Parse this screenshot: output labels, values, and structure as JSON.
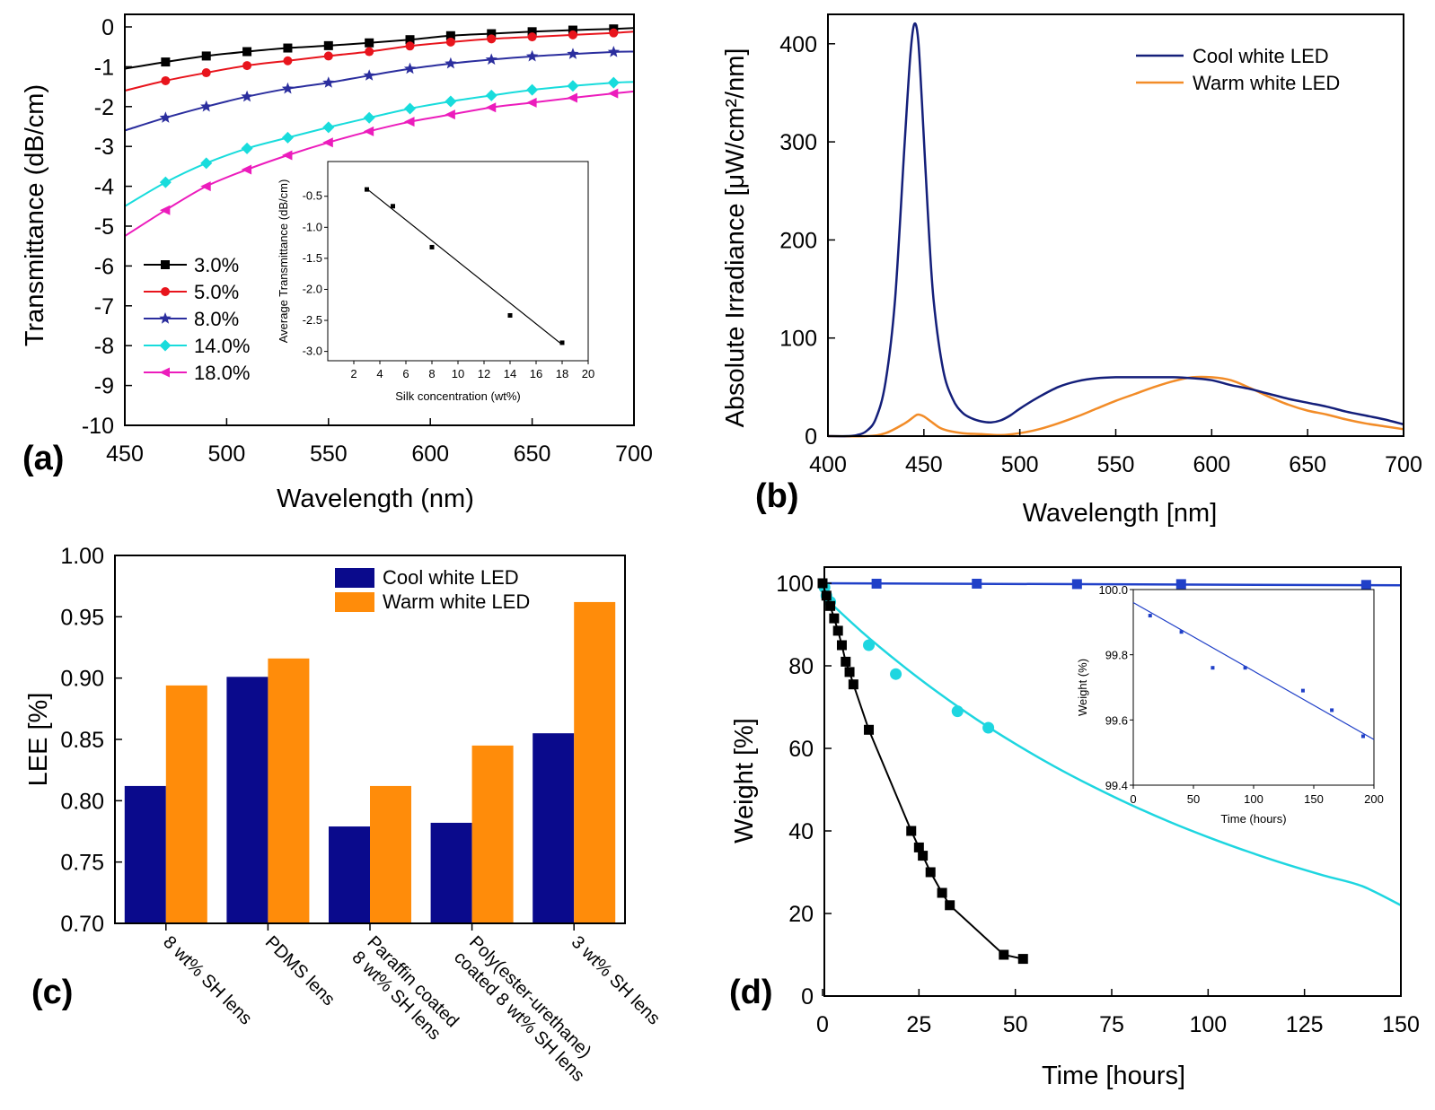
{
  "chart_data": [
    {
      "panel": "(a)",
      "type": "line",
      "xlabel": "Wavelength (nm)",
      "ylabel": "Transmittance (dB/cm)",
      "xlim": [
        450,
        700
      ],
      "ylim": [
        -10,
        0
      ],
      "xticks": [
        450,
        500,
        550,
        600,
        650,
        700
      ],
      "yticks": [
        0,
        -1,
        -2,
        -3,
        -4,
        -5,
        -6,
        -7,
        -8,
        -9,
        -10
      ],
      "series": [
        {
          "name": "3.0%",
          "color": "#000000",
          "marker": "square",
          "x": [
            450,
            470,
            490,
            510,
            530,
            550,
            570,
            590,
            610,
            630,
            650,
            670,
            690,
            700
          ],
          "y": [
            -1.05,
            -0.88,
            -0.73,
            -0.62,
            -0.53,
            -0.47,
            -0.4,
            -0.32,
            -0.22,
            -0.17,
            -0.12,
            -0.08,
            -0.05,
            -0.03
          ]
        },
        {
          "name": "5.0%",
          "color": "#e8141c",
          "marker": "circle",
          "x": [
            450,
            470,
            490,
            510,
            530,
            550,
            570,
            590,
            610,
            630,
            650,
            670,
            690,
            700
          ],
          "y": [
            -1.6,
            -1.35,
            -1.15,
            -0.97,
            -0.85,
            -0.73,
            -0.62,
            -0.48,
            -0.38,
            -0.3,
            -0.25,
            -0.2,
            -0.15,
            -0.12
          ]
        },
        {
          "name": "8.0%",
          "color": "#2b2e9e",
          "marker": "star",
          "x": [
            450,
            470,
            490,
            510,
            530,
            550,
            570,
            590,
            610,
            630,
            650,
            670,
            690,
            700
          ],
          "y": [
            -2.6,
            -2.28,
            -2.0,
            -1.75,
            -1.55,
            -1.4,
            -1.22,
            -1.05,
            -0.92,
            -0.82,
            -0.74,
            -0.68,
            -0.63,
            -0.62
          ]
        },
        {
          "name": "14.0%",
          "color": "#18dcdc",
          "marker": "diamond",
          "x": [
            450,
            470,
            490,
            510,
            530,
            550,
            570,
            590,
            610,
            630,
            650,
            670,
            690,
            700
          ],
          "y": [
            -4.5,
            -3.9,
            -3.42,
            -3.05,
            -2.78,
            -2.52,
            -2.28,
            -2.05,
            -1.87,
            -1.72,
            -1.58,
            -1.48,
            -1.4,
            -1.38
          ]
        },
        {
          "name": "18.0%",
          "color": "#ec1cbc",
          "marker": "triangle-left",
          "x": [
            450,
            470,
            490,
            510,
            530,
            550,
            570,
            590,
            610,
            630,
            650,
            670,
            690,
            700
          ],
          "y": [
            -5.25,
            -4.6,
            -4.0,
            -3.58,
            -3.22,
            -2.9,
            -2.62,
            -2.38,
            -2.2,
            -2.02,
            -1.9,
            -1.78,
            -1.67,
            -1.62
          ]
        }
      ],
      "inset": {
        "xlabel": "Silk concentration (wt%)",
        "ylabel": "Average Transmittance (dB/cm)",
        "xlim": [
          0,
          20
        ],
        "ylim": [
          -3.0,
          0.0
        ],
        "xticks": [
          2,
          4,
          6,
          8,
          10,
          12,
          14,
          16,
          18,
          20
        ],
        "yticks": [
          "-0.5",
          "-1.0",
          "-1.5",
          "-2.0",
          "-2.5",
          "-3.0"
        ],
        "points_x": [
          3,
          5,
          8,
          14,
          18
        ],
        "points_y": [
          -0.39,
          -0.66,
          -1.32,
          -2.42,
          -2.86
        ],
        "fit_x": [
          3,
          18
        ],
        "fit_y": [
          -0.38,
          -2.89
        ]
      }
    },
    {
      "panel": "(b)",
      "type": "line",
      "xlabel": "Wavelength [nm]",
      "ylabel": "Absolute Irradiance [μW/cm²/nm]",
      "xlim": [
        400,
        700
      ],
      "ylim": [
        0,
        430
      ],
      "xticks": [
        400,
        450,
        500,
        550,
        600,
        650,
        700
      ],
      "yticks": [
        0,
        100,
        200,
        300,
        400
      ],
      "series": [
        {
          "name": "Cool white LED",
          "color": "#141f7a",
          "x": [
            400,
            410,
            415,
            420,
            425,
            430,
            435,
            440,
            443,
            445,
            447,
            449,
            452,
            455,
            460,
            465,
            470,
            475,
            480,
            485,
            490,
            495,
            500,
            510,
            520,
            530,
            540,
            550,
            560,
            570,
            580,
            590,
            600,
            610,
            620,
            630,
            640,
            650,
            660,
            670,
            680,
            690,
            700
          ],
          "y": [
            0,
            0,
            1,
            5,
            18,
            55,
            140,
            300,
            390,
            420,
            405,
            340,
            230,
            140,
            68,
            38,
            24,
            18,
            15,
            14,
            16,
            21,
            28,
            40,
            50,
            56,
            59,
            60,
            60,
            60,
            60,
            59,
            57,
            52,
            48,
            43,
            38,
            34,
            30,
            25,
            21,
            17,
            12
          ]
        },
        {
          "name": "Warm white LED",
          "color": "#f28c28",
          "x": [
            400,
            420,
            430,
            440,
            445,
            447,
            450,
            455,
            460,
            470,
            480,
            490,
            500,
            510,
            520,
            530,
            540,
            550,
            560,
            570,
            580,
            590,
            600,
            610,
            620,
            630,
            640,
            650,
            660,
            670,
            680,
            690,
            700
          ],
          "y": [
            0,
            0,
            3,
            13,
            20,
            22,
            20,
            13,
            7,
            3,
            2,
            1,
            3,
            7,
            13,
            20,
            28,
            36,
            43,
            50,
            56,
            60,
            60,
            57,
            49,
            40,
            32,
            26,
            22,
            17,
            13,
            10,
            7
          ]
        }
      ]
    },
    {
      "panel": "(c)",
      "type": "bar",
      "ylabel": "LEE [%]",
      "ylim": [
        0.7,
        1.0
      ],
      "yticks": [
        "0.70",
        "0.75",
        "0.80",
        "0.85",
        "0.90",
        "0.95",
        "1.00"
      ],
      "categories": [
        "8 wt% SH lens",
        "PDMS lens",
        "Paraffin coated\n8 wt% SH lens",
        "Poly(ester-urethane)\ncoated 8 wt% SH lens",
        "3 wt% SH lens"
      ],
      "series": [
        {
          "name": "Cool white LED",
          "color": "#0a0a8c",
          "values": [
            0.812,
            0.901,
            0.779,
            0.782,
            0.855
          ]
        },
        {
          "name": "Warm white LED",
          "color": "#ff8c0a",
          "values": [
            0.894,
            0.916,
            0.812,
            0.845,
            0.962
          ]
        }
      ]
    },
    {
      "panel": "(d)",
      "type": "scatter",
      "xlabel": "Time [hours]",
      "ylabel": "Weight [%]",
      "xlim": [
        0,
        150
      ],
      "ylim": [
        0,
        100
      ],
      "xticks": [
        0,
        25,
        50,
        75,
        100,
        125,
        150
      ],
      "yticks": [
        0,
        20,
        40,
        60,
        80,
        100
      ],
      "series": [
        {
          "name": "blue",
          "color": "#2040c8",
          "x": [
            0,
            14,
            40,
            66,
            93,
            141
          ],
          "y": [
            100,
            99.9,
            99.9,
            99.8,
            99.8,
            99.6
          ],
          "line_x": [
            0,
            150
          ],
          "line_y": [
            100,
            99.5
          ]
        },
        {
          "name": "cyan",
          "color": "#1ed6e0",
          "x": [
            0.5,
            1,
            2,
            12,
            19,
            35,
            43
          ],
          "y": [
            99,
            97,
            95.5,
            85,
            78,
            69,
            65
          ],
          "line_x": [
            0,
            10,
            20,
            30,
            40,
            50,
            60,
            70,
            80,
            90,
            100,
            110,
            120,
            130,
            140,
            150
          ],
          "line_y": [
            97,
            88.4,
            80.6,
            73.5,
            67,
            61.1,
            55.7,
            50.8,
            46.3,
            42.2,
            38.5,
            35.1,
            32,
            29.2,
            26.6,
            22
          ]
        },
        {
          "name": "black",
          "color": "#000000",
          "x": [
            0,
            1,
            2,
            3,
            4,
            5,
            6,
            7,
            8,
            12,
            23,
            25,
            26,
            28,
            31,
            33,
            47,
            52
          ],
          "y": [
            100,
            97,
            94.5,
            91.5,
            88.5,
            85,
            81,
            78.5,
            75.5,
            64.5,
            40,
            36,
            34,
            30,
            25,
            22,
            10,
            9
          ]
        }
      ],
      "inset": {
        "xlabel": "Time (hours)",
        "ylabel": "Weight (%)",
        "xlim": [
          0,
          200
        ],
        "ylim": [
          99.4,
          100.0
        ],
        "xticks": [
          0,
          50,
          100,
          150,
          200
        ],
        "yticks": [
          "99.4",
          "99.6",
          "99.8",
          "100.0"
        ],
        "points_x": [
          14,
          40,
          66,
          93,
          141,
          165,
          191
        ],
        "points_y": [
          99.92,
          99.87,
          99.76,
          99.76,
          99.69,
          99.63,
          99.55
        ],
        "fit_x": [
          0,
          200
        ],
        "fit_y": [
          99.96,
          99.54
        ]
      }
    }
  ]
}
